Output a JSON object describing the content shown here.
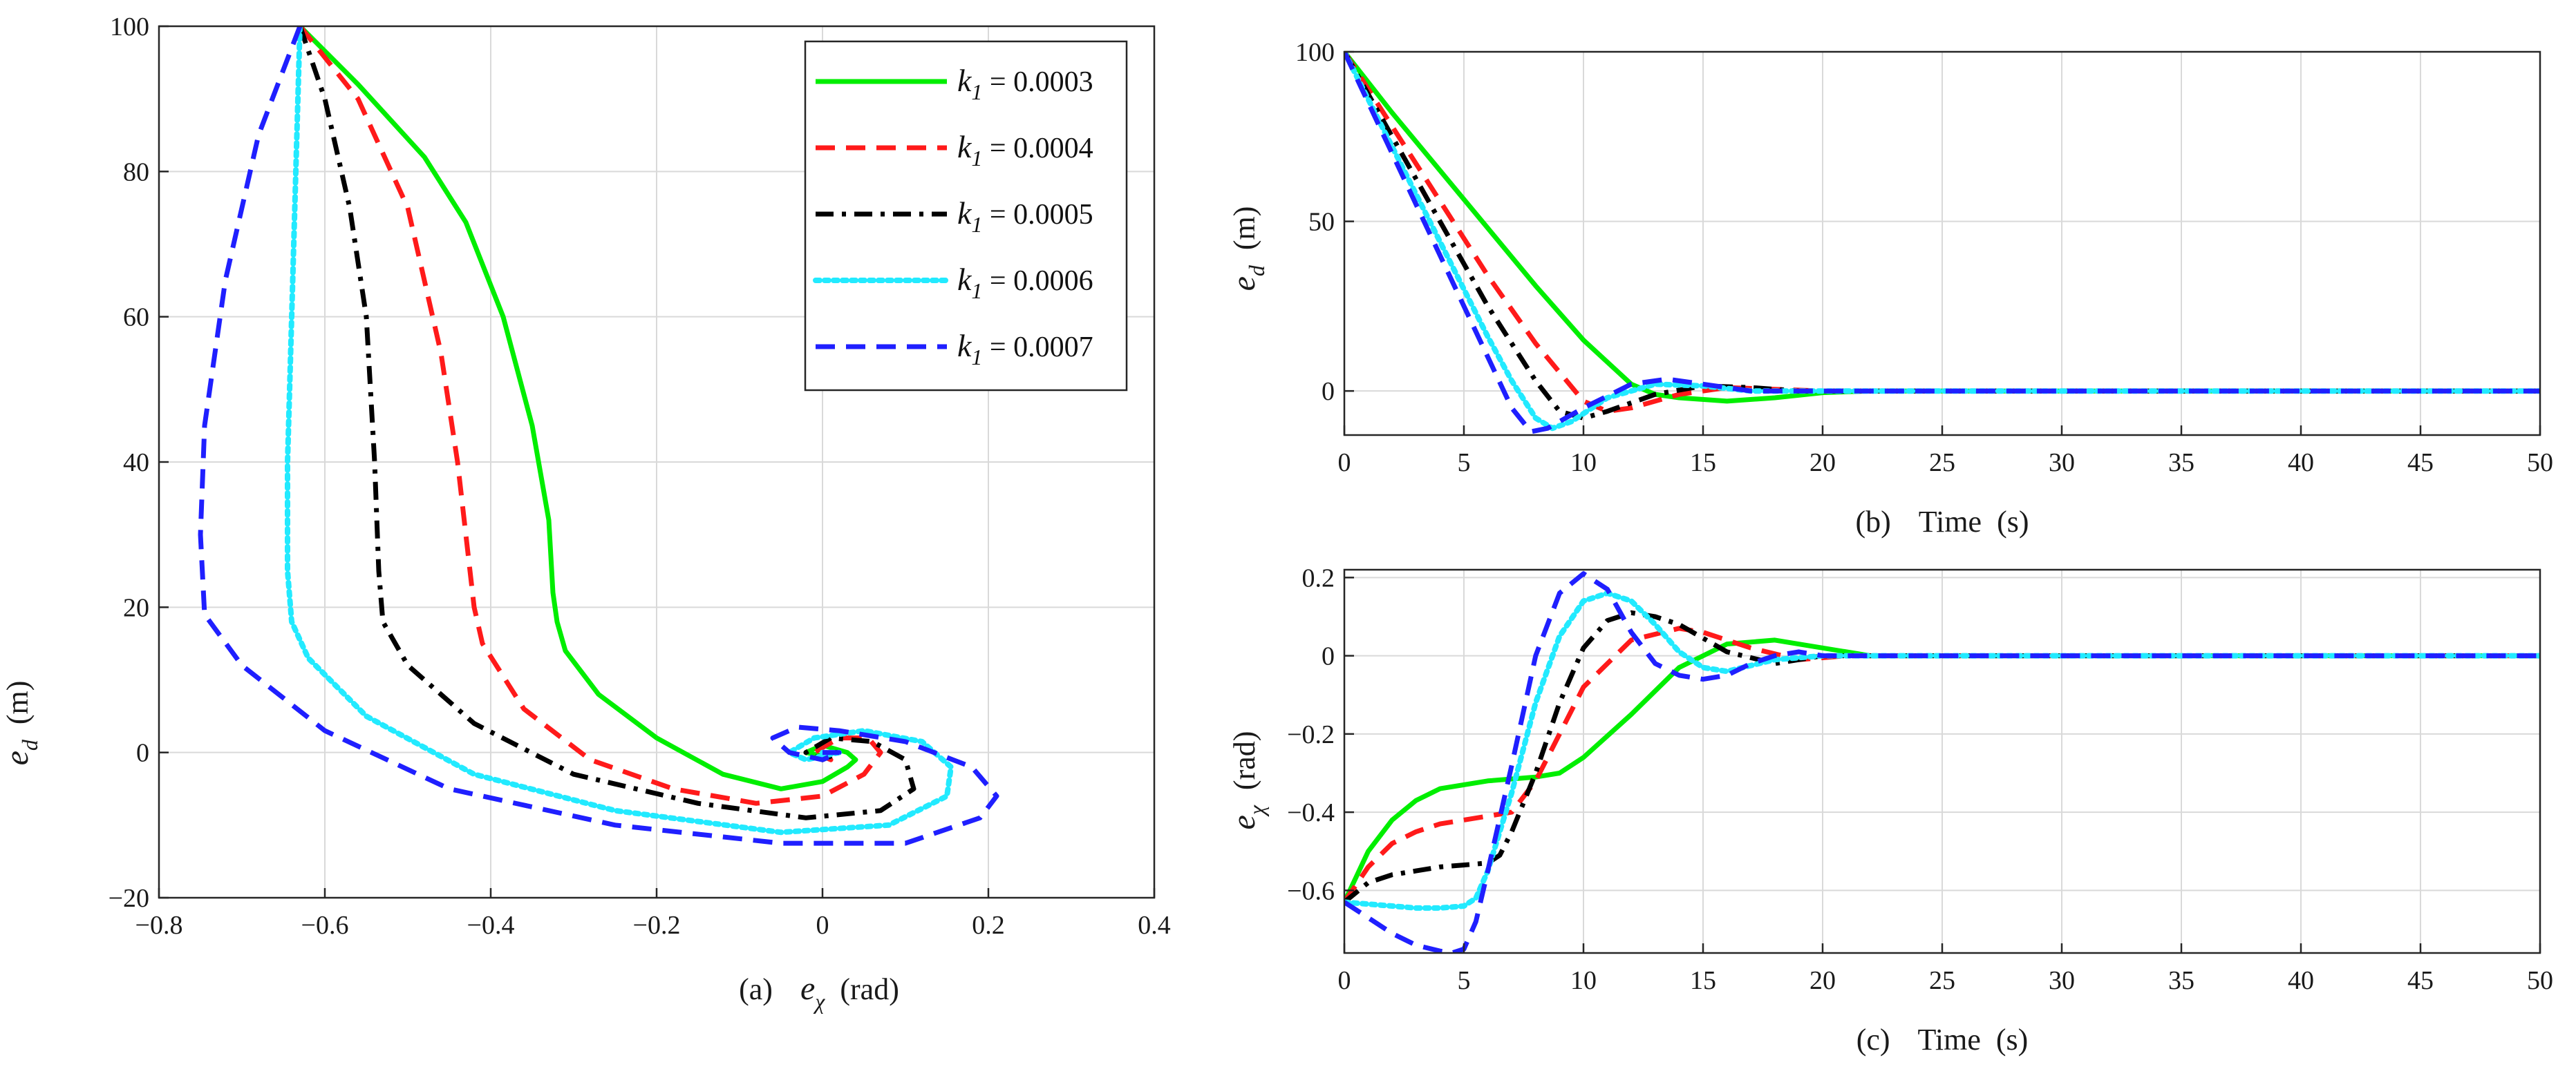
{
  "chart_data": [
    {
      "type": "line",
      "id": "a",
      "caption": "(a)",
      "xlabel": {
        "symbol": "e",
        "sub": "χ",
        "unit": "(rad)"
      },
      "ylabel": {
        "symbol": "e",
        "sub": "d",
        "unit": "(m)"
      },
      "xlim": [
        -0.8,
        0.4
      ],
      "ylim": [
        -20,
        100
      ],
      "xticks": [
        -0.8,
        -0.6,
        -0.4,
        -0.2,
        0,
        0.2,
        0.4
      ],
      "xtick_labels": [
        "−0.8",
        "−0.6",
        "−0.4",
        "−0.2",
        "0",
        "0.2",
        "0.4"
      ],
      "yticks": [
        -20,
        0,
        20,
        40,
        60,
        80,
        100
      ],
      "ytick_labels": [
        "−20",
        "0",
        "20",
        "40",
        "60",
        "80",
        "100"
      ],
      "grid": true,
      "legend": "top-right",
      "series": [
        {
          "name": "k1 = 0.0003",
          "x": [
            -0.63,
            -0.56,
            -0.48,
            -0.43,
            -0.385,
            -0.35,
            -0.33,
            -0.325,
            -0.32,
            -0.31,
            -0.27,
            -0.2,
            -0.12,
            -0.05,
            0.0,
            0.03,
            0.04,
            0.03,
            0.0,
            -0.02,
            0.0,
            0.015,
            0.005
          ],
          "y": [
            100,
            92,
            82,
            73,
            60,
            45,
            32,
            22,
            18,
            14,
            8,
            2,
            -3,
            -5,
            -4,
            -2,
            -1,
            0,
            1,
            0,
            -0.5,
            0,
            0
          ]
        },
        {
          "name": "k1 = 0.0004",
          "x": [
            -0.63,
            -0.56,
            -0.5,
            -0.46,
            -0.44,
            -0.425,
            -0.42,
            -0.41,
            -0.36,
            -0.28,
            -0.18,
            -0.08,
            0.0,
            0.05,
            0.07,
            0.055,
            0.02,
            -0.01,
            0.01,
            0.0
          ],
          "y": [
            100,
            90,
            75,
            55,
            40,
            25,
            20,
            15,
            6,
            -1,
            -5,
            -7,
            -6,
            -3,
            0,
            2,
            2,
            0,
            -1,
            0
          ]
        },
        {
          "name": "k1 = 0.0005",
          "x": [
            -0.63,
            -0.6,
            -0.57,
            -0.55,
            -0.54,
            -0.535,
            -0.53,
            -0.5,
            -0.42,
            -0.3,
            -0.15,
            -0.02,
            0.07,
            0.11,
            0.1,
            0.06,
            0.01,
            -0.02,
            0.0,
            0.02,
            0.0
          ],
          "y": [
            100,
            90,
            75,
            60,
            40,
            25,
            18,
            12,
            4,
            -3,
            -7,
            -9,
            -8,
            -5,
            -1,
            1.5,
            2,
            0,
            -1,
            0,
            0
          ]
        },
        {
          "name": "k1 = 0.0006",
          "x": [
            -0.63,
            -0.635,
            -0.64,
            -0.645,
            -0.645,
            -0.64,
            -0.62,
            -0.55,
            -0.42,
            -0.25,
            -0.05,
            0.08,
            0.15,
            0.155,
            0.12,
            0.05,
            -0.01,
            -0.04,
            -0.02,
            0.02,
            0.0
          ],
          "y": [
            100,
            80,
            60,
            40,
            25,
            18,
            13,
            5,
            -3,
            -8,
            -11,
            -10,
            -6,
            -2,
            1.5,
            3,
            2,
            0,
            -1,
            0,
            0
          ]
        },
        {
          "name": "k1 = 0.0007",
          "x": [
            -0.63,
            -0.68,
            -0.72,
            -0.745,
            -0.75,
            -0.745,
            -0.7,
            -0.6,
            -0.45,
            -0.25,
            -0.05,
            0.1,
            0.19,
            0.21,
            0.18,
            0.1,
            0.02,
            -0.03,
            -0.06,
            -0.04,
            0.0,
            0.02,
            0.0
          ],
          "y": [
            100,
            85,
            65,
            45,
            30,
            19,
            12,
            3,
            -5,
            -10,
            -12.5,
            -12.5,
            -9,
            -6,
            -2,
            1.5,
            3,
            3.5,
            2,
            0,
            -1,
            0,
            0
          ]
        }
      ]
    },
    {
      "type": "line",
      "id": "b",
      "caption": "(b)",
      "xlabel": {
        "text": "Time",
        "unit": "(s)"
      },
      "ylabel": {
        "symbol": "e",
        "sub": "d",
        "unit": "(m)"
      },
      "xlim": [
        0,
        50
      ],
      "ylim": [
        -13,
        100
      ],
      "xticks": [
        0,
        5,
        10,
        15,
        20,
        25,
        30,
        35,
        40,
        45,
        50
      ],
      "xtick_labels": [
        "0",
        "5",
        "10",
        "15",
        "20",
        "25",
        "30",
        "35",
        "40",
        "45",
        "50"
      ],
      "yticks": [
        0,
        50,
        100
      ],
      "ytick_labels": [
        "0",
        "50",
        "100"
      ],
      "grid": true,
      "series": [
        {
          "name": "k1 = 0.0003",
          "x": [
            0,
            2,
            4,
            6,
            8,
            10,
            12,
            13,
            14,
            16,
            18,
            20,
            22,
            50
          ],
          "y": [
            100,
            82,
            65,
            48,
            31,
            15,
            2,
            -1,
            -2,
            -3,
            -2,
            -0.5,
            0,
            0
          ]
        },
        {
          "name": "k1 = 0.0004",
          "x": [
            0,
            2,
            4,
            6,
            8,
            10,
            11,
            12,
            14,
            16,
            18,
            20,
            50
          ],
          "y": [
            100,
            78,
            56,
            34,
            14,
            -3,
            -6,
            -5,
            -1,
            1,
            0.5,
            0,
            0
          ]
        },
        {
          "name": "k1 = 0.0005",
          "x": [
            0,
            2,
            4,
            6,
            8,
            9,
            10,
            11,
            13,
            15,
            17,
            19,
            21,
            50
          ],
          "y": [
            100,
            75,
            50,
            25,
            3,
            -6,
            -8,
            -6,
            -1,
            1.5,
            1,
            0,
            0,
            0
          ]
        },
        {
          "name": "k1 = 0.0006",
          "x": [
            0,
            2,
            4,
            6,
            7,
            8,
            8.7,
            9.5,
            11,
            13,
            15,
            17,
            20,
            50
          ],
          "y": [
            100,
            72,
            44,
            16,
            3,
            -8,
            -11,
            -9,
            -2,
            2,
            1.5,
            0,
            0,
            0
          ]
        },
        {
          "name": "k1 = 0.0007",
          "x": [
            0,
            2,
            4,
            6,
            7,
            7.8,
            8.5,
            10,
            12,
            13.5,
            15,
            17,
            20,
            50
          ],
          "y": [
            100,
            70,
            40,
            10,
            -5,
            -12,
            -11,
            -5,
            2,
            3.5,
            2,
            0,
            0,
            0
          ]
        }
      ]
    },
    {
      "type": "line",
      "id": "c",
      "caption": "(c)",
      "xlabel": {
        "text": "Time",
        "unit": "(s)"
      },
      "ylabel": {
        "symbol": "e",
        "sub": "χ",
        "unit": "(rad)"
      },
      "xlim": [
        0,
        50
      ],
      "ylim": [
        -0.76,
        0.22
      ],
      "xticks": [
        0,
        5,
        10,
        15,
        20,
        25,
        30,
        35,
        40,
        45,
        50
      ],
      "xtick_labels": [
        "0",
        "5",
        "10",
        "15",
        "20",
        "25",
        "30",
        "35",
        "40",
        "45",
        "50"
      ],
      "yticks": [
        -0.6,
        -0.4,
        -0.2,
        0,
        0.2
      ],
      "ytick_labels": [
        "−0.6",
        "−0.4",
        "−0.2",
        "0",
        "0.2"
      ],
      "grid": true,
      "series": [
        {
          "name": "k1 = 0.0003",
          "x": [
            0,
            1,
            2,
            3,
            4,
            6,
            8,
            9,
            10,
            12,
            14,
            16,
            18,
            20,
            22,
            24,
            50
          ],
          "y": [
            -0.63,
            -0.5,
            -0.42,
            -0.37,
            -0.34,
            -0.32,
            -0.31,
            -0.3,
            -0.26,
            -0.15,
            -0.03,
            0.03,
            0.04,
            0.02,
            0.0,
            0.0,
            0.0
          ]
        },
        {
          "name": "k1 = 0.0004",
          "x": [
            0,
            1,
            2,
            3,
            4,
            5,
            6,
            7,
            8,
            9,
            10,
            12,
            14,
            15,
            17,
            19,
            21,
            23,
            50
          ],
          "y": [
            -0.63,
            -0.54,
            -0.48,
            -0.45,
            -0.43,
            -0.42,
            -0.41,
            -0.4,
            -0.32,
            -0.2,
            -0.08,
            0.04,
            0.07,
            0.06,
            0.02,
            -0.01,
            0.0,
            0.0,
            0.0
          ]
        },
        {
          "name": "k1 = 0.0005",
          "x": [
            0,
            1,
            2,
            3,
            4,
            5,
            6,
            6.5,
            7,
            8,
            9,
            10,
            11,
            12,
            13,
            14,
            16,
            18,
            20,
            22,
            50
          ],
          "y": [
            -0.63,
            -0.58,
            -0.56,
            -0.55,
            -0.54,
            -0.535,
            -0.53,
            -0.51,
            -0.45,
            -0.3,
            -0.12,
            0.02,
            0.09,
            0.11,
            0.1,
            0.08,
            0.01,
            -0.02,
            0.0,
            0.0,
            0.0
          ]
        },
        {
          "name": "k1 = 0.0006",
          "x": [
            0,
            1,
            2,
            3,
            4,
            5,
            5.5,
            6,
            7,
            8,
            9,
            10,
            11,
            12,
            13,
            14,
            15,
            16,
            18,
            20,
            50
          ],
          "y": [
            -0.63,
            -0.635,
            -0.64,
            -0.645,
            -0.645,
            -0.64,
            -0.62,
            -0.55,
            -0.35,
            -0.12,
            0.05,
            0.14,
            0.16,
            0.14,
            0.08,
            0.01,
            -0.03,
            -0.04,
            -0.01,
            0.0,
            0.0
          ]
        },
        {
          "name": "k1 = 0.0007",
          "x": [
            0,
            1,
            2,
            3,
            4,
            4.5,
            5,
            5.5,
            6,
            7,
            8,
            9,
            10,
            11,
            12,
            13,
            14,
            15,
            16,
            17,
            18,
            19,
            20,
            50
          ],
          "y": [
            -0.63,
            -0.67,
            -0.71,
            -0.74,
            -0.755,
            -0.76,
            -0.75,
            -0.68,
            -0.55,
            -0.28,
            0.0,
            0.16,
            0.21,
            0.17,
            0.06,
            -0.02,
            -0.05,
            -0.06,
            -0.05,
            -0.02,
            0.0,
            0.01,
            0.0,
            0.0
          ]
        }
      ]
    }
  ],
  "legend": {
    "entries": [
      {
        "sym": "k",
        "sub": "1",
        "value": " = 0.0003",
        "color": "#00ee00",
        "dash": "solid"
      },
      {
        "sym": "k",
        "sub": "1",
        "value": " = 0.0004",
        "color": "#ff1a1a",
        "dash": "dashed"
      },
      {
        "sym": "k",
        "sub": "1",
        "value": " = 0.0005",
        "color": "#000000",
        "dash": "dashdot"
      },
      {
        "sym": "k",
        "sub": "1",
        "value": " = 0.0006",
        "color": "#22eaff",
        "dash": "dotted"
      },
      {
        "sym": "k",
        "sub": "1",
        "value": " = 0.0007",
        "color": "#1f1fff",
        "dash": "dashed"
      }
    ]
  },
  "colors": {
    "axis": "#262626",
    "grid": "#d9d9d9",
    "series": [
      "#00ee00",
      "#ff1a1a",
      "#000000",
      "#22eaff",
      "#1f1fff"
    ]
  }
}
